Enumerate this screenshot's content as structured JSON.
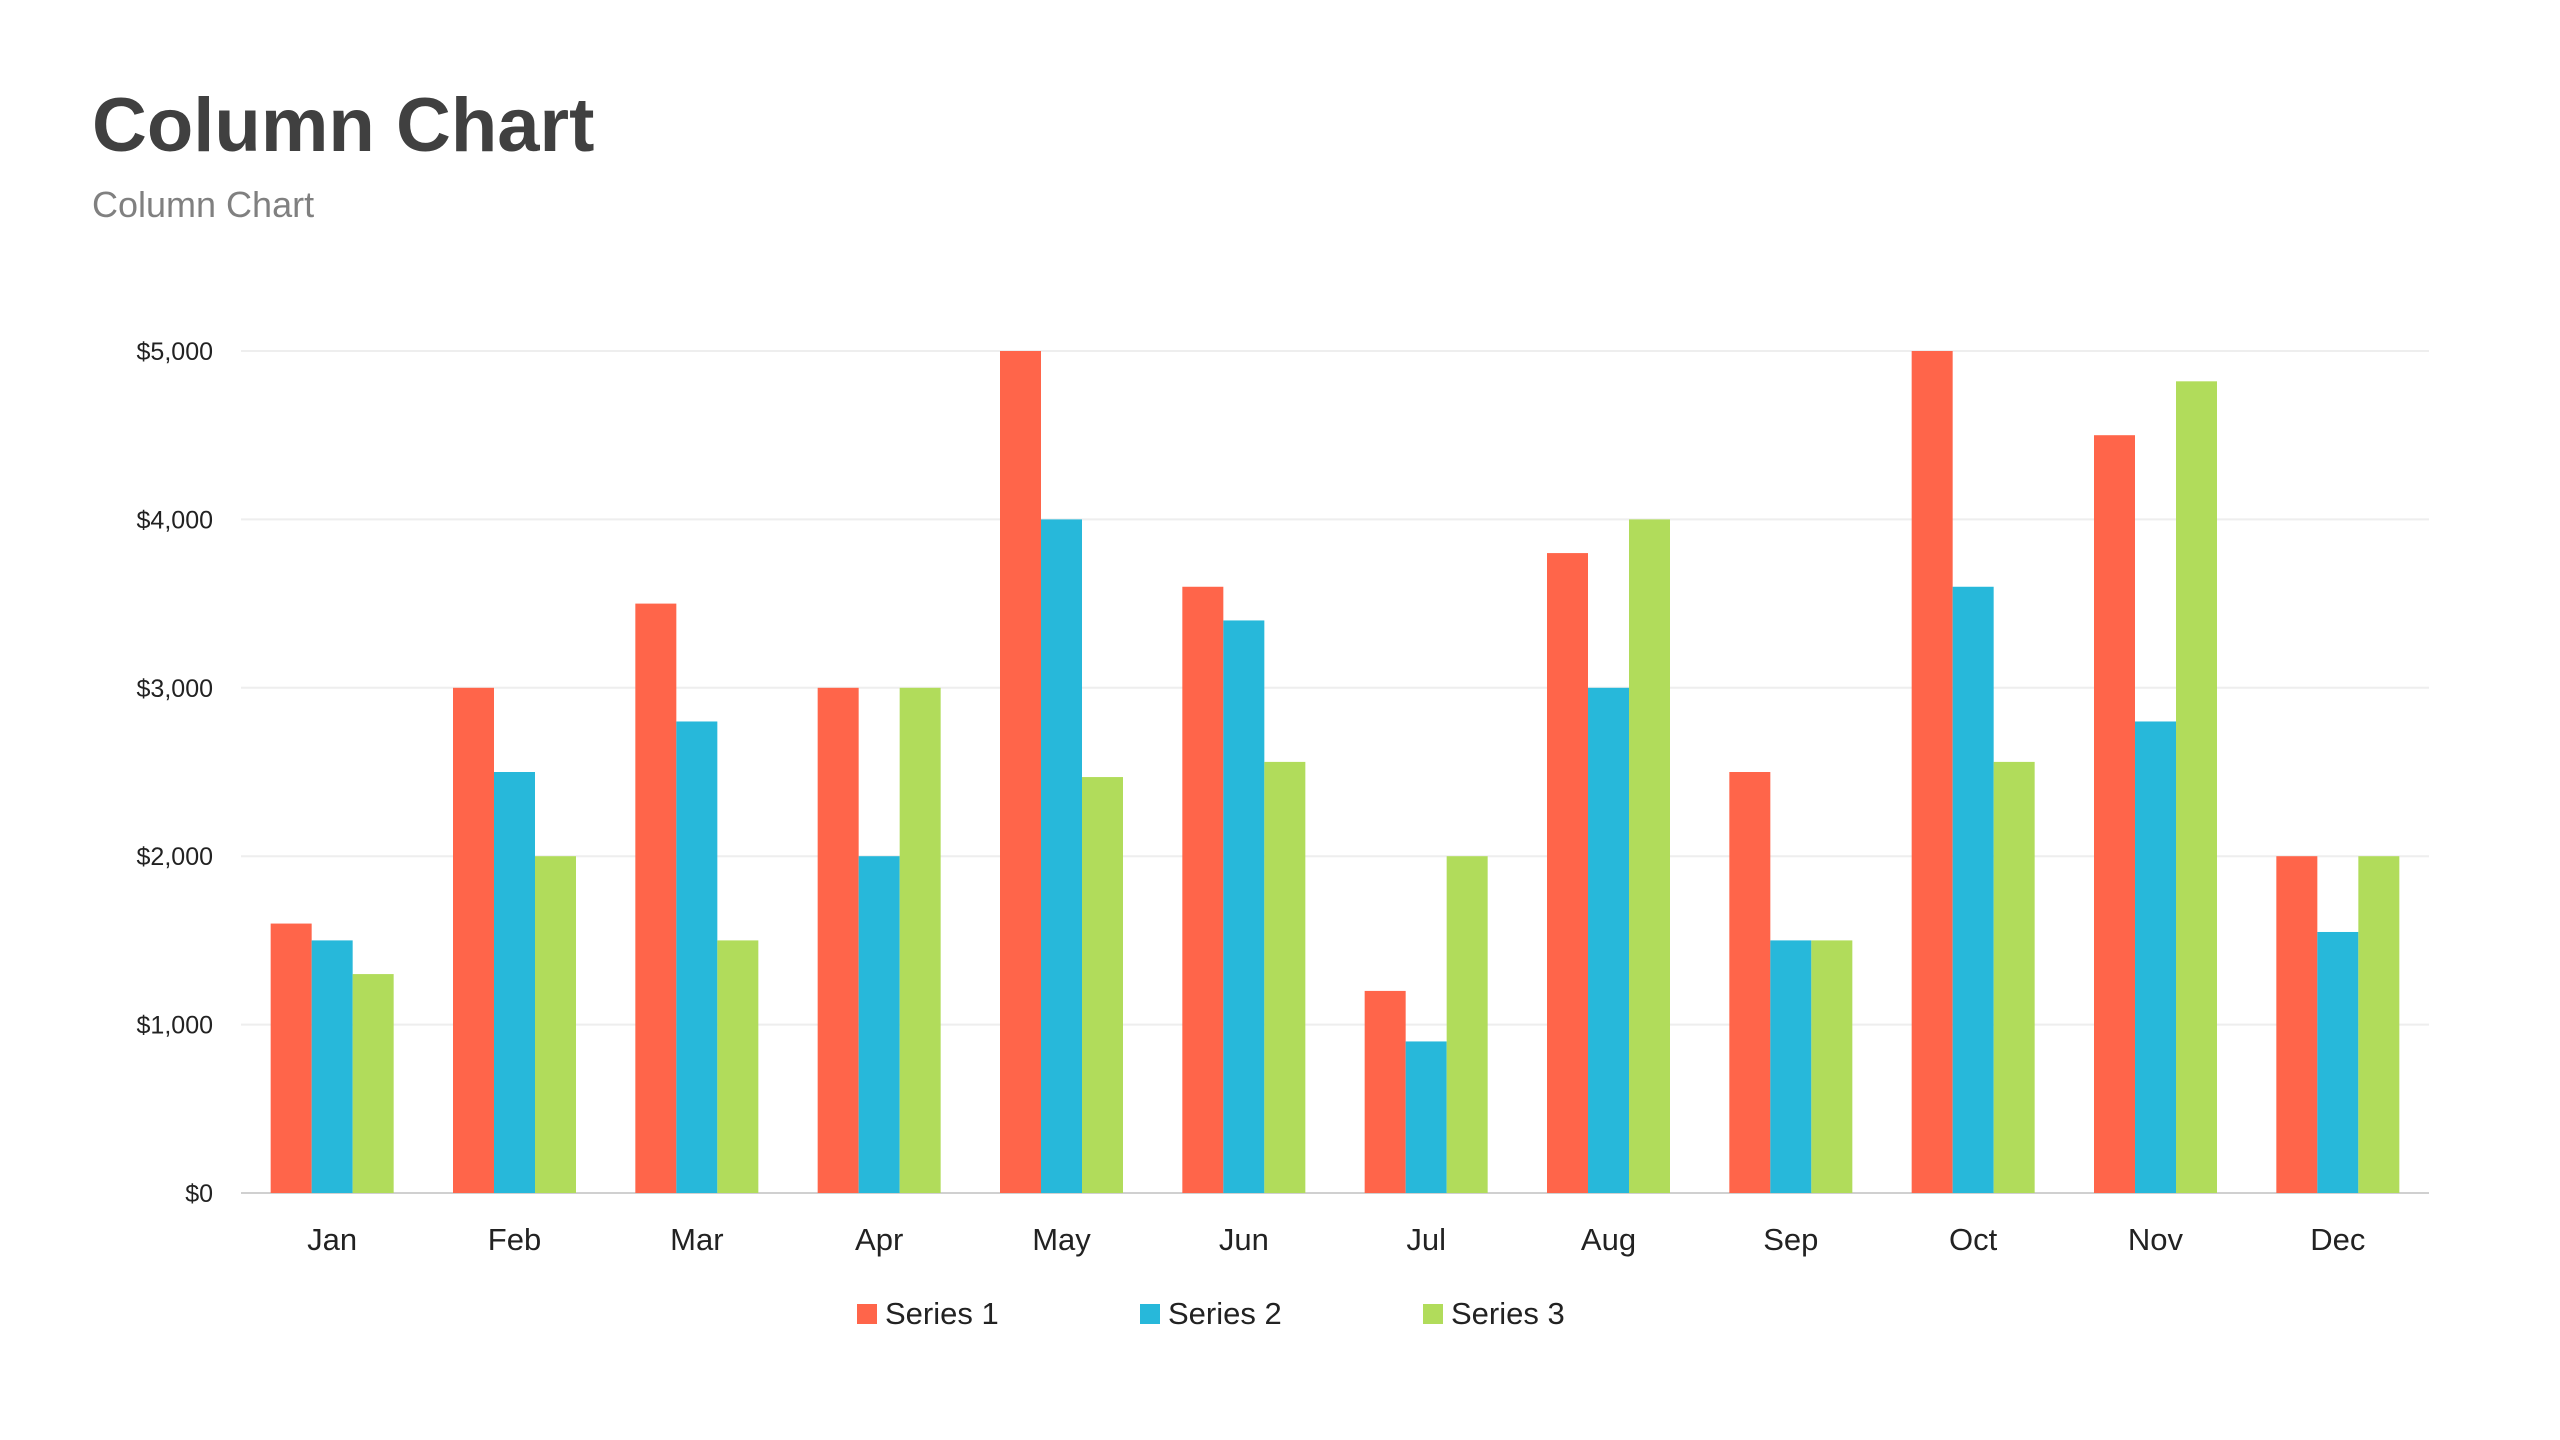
{
  "chart_data": {
    "type": "bar",
    "title": "Column Chart",
    "subtitle": "Column Chart",
    "xlabel": "",
    "ylabel": "",
    "ylim": [
      0,
      5000
    ],
    "yticks": [
      0,
      1000,
      2000,
      3000,
      4000,
      5000
    ],
    "ytick_labels": [
      "$0",
      "$1,000",
      "$2,000",
      "$3,000",
      "$4,000",
      "$5,000"
    ],
    "grid": true,
    "legend_position": "bottom",
    "categories": [
      "Jan",
      "Feb",
      "Mar",
      "Apr",
      "May",
      "Jun",
      "Jul",
      "Aug",
      "Sep",
      "Oct",
      "Nov",
      "Dec"
    ],
    "series": [
      {
        "name": "Series 1",
        "color": "#FF654A",
        "values": [
          1600,
          3000,
          3500,
          3000,
          5000,
          3600,
          1200,
          3800,
          2500,
          5000,
          4500,
          2000
        ]
      },
      {
        "name": "Series 2",
        "color": "#27B8DA",
        "values": [
          1500,
          2500,
          2800,
          2000,
          4000,
          3400,
          900,
          3000,
          1500,
          3600,
          2800,
          1550
        ]
      },
      {
        "name": "Series 3",
        "color": "#B1DC5B",
        "values": [
          1300,
          2000,
          1500,
          3000,
          2470,
          2560,
          2000,
          4000,
          1500,
          2560,
          4820,
          2000
        ]
      }
    ]
  }
}
